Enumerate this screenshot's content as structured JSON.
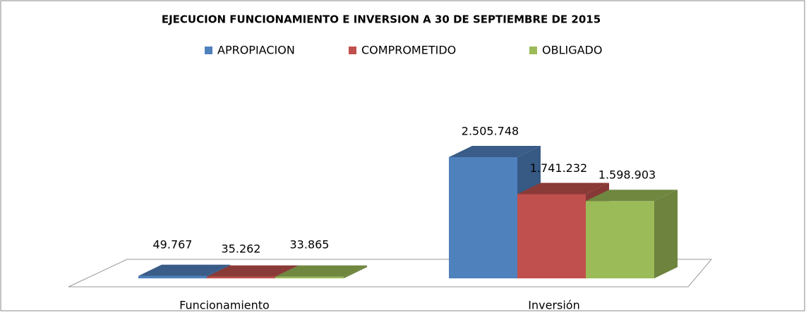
{
  "chart_data": {
    "type": "bar3d",
    "title": "EJECUCION FUNCIONAMIENTO E INVERSION A 30 DE SEPTIEMBRE DE 2015",
    "categories": [
      "Funcionamiento",
      "Inversión"
    ],
    "series": [
      {
        "name": "APROPIACION",
        "color": "#4f81bd",
        "values": [
          49767,
          2505748
        ],
        "value_labels": [
          "49.767",
          "2.505.748"
        ]
      },
      {
        "name": "COMPROMETIDO",
        "color": "#c0504d",
        "values": [
          35262,
          1741232
        ],
        "value_labels": [
          "35.262",
          "1.741.232"
        ]
      },
      {
        "name": "OBLIGADO",
        "color": "#9bbb59",
        "values": [
          33865,
          1598903
        ],
        "value_labels": [
          "33.865",
          "1.598.903"
        ]
      }
    ]
  }
}
